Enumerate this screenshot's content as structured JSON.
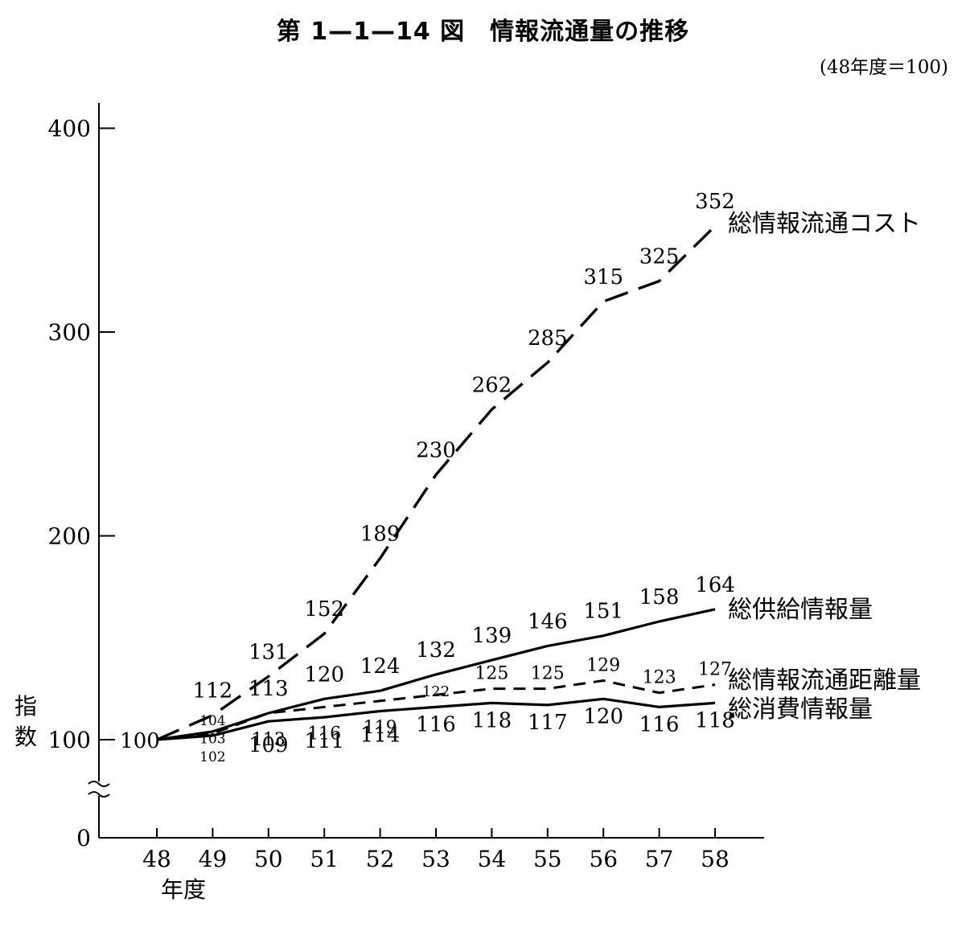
{
  "title": "第 1—1—14 図　情報流通量の推移",
  "note": "(48年度＝100)",
  "chart_data": {
    "type": "line",
    "title": "第 1—1—14 図　情報流通量の推移",
    "xlabel": "年度",
    "ylabel": "指数",
    "categories": [
      "48",
      "49",
      "50",
      "51",
      "52",
      "53",
      "54",
      "55",
      "56",
      "57",
      "58"
    ],
    "yticks": [
      "0",
      "100",
      "200",
      "300",
      "400"
    ],
    "ylim": [
      0,
      420
    ],
    "axis_break": "between 0 and 100",
    "grid": false,
    "series": [
      {
        "name": "総情報流通コスト",
        "style": "long-dash",
        "values": [
          100,
          112,
          131,
          152,
          189,
          230,
          262,
          285,
          315,
          325,
          352
        ],
        "labels": [
          "100",
          "112",
          "131",
          "152",
          "189",
          "230",
          "262",
          "285",
          "315",
          "325",
          "352"
        ]
      },
      {
        "name": "総供給情報量",
        "style": "solid",
        "values": [
          100,
          104,
          113,
          120,
          124,
          132,
          139,
          146,
          151,
          158,
          164
        ],
        "labels": [
          "",
          "104",
          "113",
          "120",
          "124",
          "132",
          "139",
          "146",
          "151",
          "158",
          "164"
        ]
      },
      {
        "name": "総情報流通距離量",
        "style": "short-dash",
        "values": [
          100,
          103,
          113,
          116,
          119,
          122,
          125,
          125,
          129,
          123,
          127
        ],
        "labels": [
          "",
          "103",
          "113",
          "116",
          "119",
          "122",
          "125",
          "125",
          "129",
          "123",
          "127"
        ]
      },
      {
        "name": "総消費情報量",
        "style": "solid",
        "values": [
          100,
          102,
          109,
          111,
          114,
          116,
          118,
          117,
          120,
          116,
          118
        ],
        "labels": [
          "",
          "102",
          "109",
          "111",
          "114",
          "116",
          "118",
          "117",
          "120",
          "116",
          "118"
        ]
      }
    ]
  }
}
